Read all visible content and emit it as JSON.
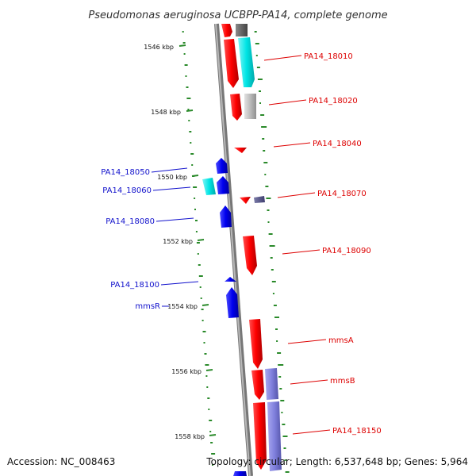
{
  "title": "Pseudomonas aeruginosa UCBPP-PA14, complete genome",
  "accession": "Accession: NC_008463",
  "topology": "Topology: circular; Length: 6,537,648 bp; Genes: 5,964",
  "ticks": [
    "1546 kbp",
    "1548 kbp",
    "1550 kbp",
    "1552 kbp",
    "1554 kbp",
    "1556 kbp",
    "1558 kbp"
  ],
  "labels_right": [
    "PA14_18010",
    "PA14_18020",
    "PA14_18040",
    "PA14_18070",
    "PA14_18090",
    "mmsA",
    "mmsB",
    "PA14_18150"
  ],
  "labels_left": [
    "PA14_18050",
    "PA14_18060",
    "PA14_18080",
    "PA14_18100",
    "mmsR"
  ],
  "colors": {
    "forward_gene": "#ff0000",
    "reverse_gene": "#0000ee",
    "label_forward": "#dd0000",
    "label_reverse": "#1111cc",
    "backbone": "#888888",
    "gc_ticks": "#2a8a2a",
    "cyan_track": "#00e5e5",
    "grey_track": "#bbbbbb",
    "dark_track": "#666666",
    "purple_track": "#8080dd"
  }
}
